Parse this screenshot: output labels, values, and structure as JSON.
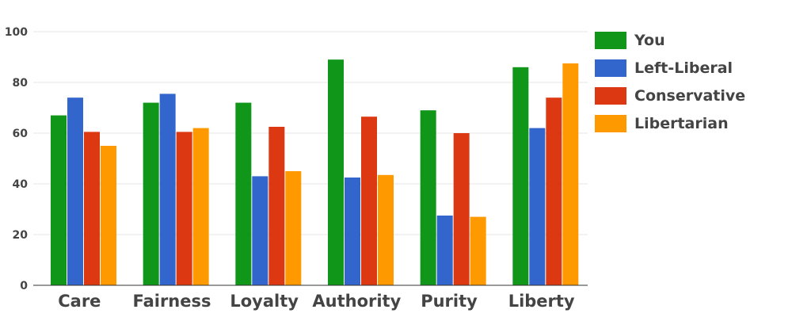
{
  "chart_data": {
    "type": "bar",
    "categories": [
      "Care",
      "Fairness",
      "Loyalty",
      "Authority",
      "Purity",
      "Liberty"
    ],
    "series": [
      {
        "name": "You",
        "color": "#109618",
        "values": [
          67,
          72,
          72,
          89,
          69,
          86
        ]
      },
      {
        "name": "Left-Liberal",
        "color": "#3366cc",
        "values": [
          74,
          75.5,
          43,
          42.5,
          27.5,
          62
        ]
      },
      {
        "name": "Conservative",
        "color": "#dc3912",
        "values": [
          60.5,
          60.5,
          62.5,
          66.5,
          60,
          74
        ]
      },
      {
        "name": "Libertarian",
        "color": "#ff9900",
        "values": [
          55,
          62,
          45,
          43.5,
          27,
          87.5
        ]
      }
    ],
    "ylim": [
      0,
      100
    ],
    "yticks": [
      0,
      20,
      40,
      60,
      80,
      100
    ],
    "grid": true,
    "legend_position": "right"
  }
}
